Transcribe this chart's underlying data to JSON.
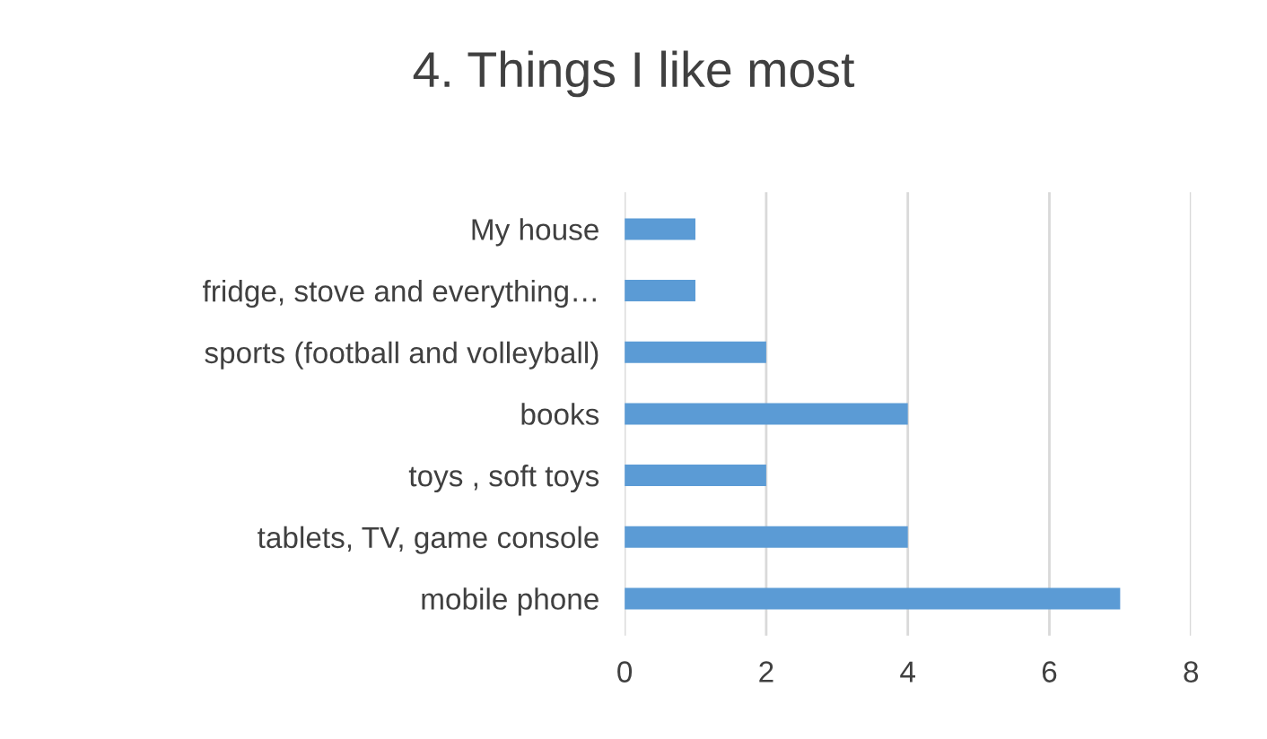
{
  "chart_data": {
    "type": "bar",
    "orientation": "horizontal",
    "title": "4. Things I like most",
    "categories": [
      "My house",
      "fridge, stove and everything…",
      "sports (football and volleyball)",
      "books",
      "toys , soft toys",
      "tablets, TV, game console",
      "mobile phone"
    ],
    "values": [
      1,
      1,
      2,
      4,
      2,
      4,
      7
    ],
    "color": "#5b9bd5",
    "xlim": [
      0,
      8
    ],
    "xticks": [
      0,
      2,
      4,
      6,
      8
    ],
    "grid": "x"
  }
}
